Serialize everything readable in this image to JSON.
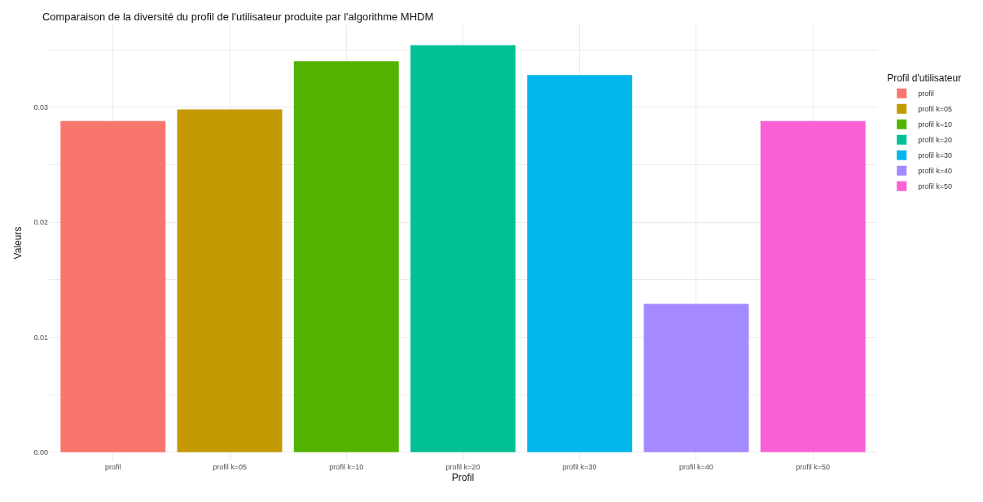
{
  "chart_data": {
    "type": "bar",
    "title": "Comparaison de la diversité du profil de l'utilisateur produite par l'algorithme MHDM",
    "xlabel": "Profil",
    "ylabel": "Valeurs",
    "legend_title": "Profil d'utilisateur",
    "categories": [
      "profil",
      "profil k=05",
      "profil k=10",
      "profil k=20",
      "profil k=30",
      "profil k=40",
      "profil k=50"
    ],
    "series": [
      {
        "name": "profil",
        "color": "#f8766d",
        "values": [
          0.0288,
          null,
          null,
          null,
          null,
          null,
          null
        ]
      },
      {
        "name": "profil k=05",
        "color": "#c49a00",
        "values": [
          null,
          0.0298,
          null,
          null,
          null,
          null,
          null
        ]
      },
      {
        "name": "profil k=10",
        "color": "#53b400",
        "values": [
          null,
          null,
          0.034,
          null,
          null,
          null,
          null
        ]
      },
      {
        "name": "profil k=20",
        "color": "#00c094",
        "values": [
          null,
          null,
          null,
          0.0354,
          null,
          null,
          null
        ]
      },
      {
        "name": "profil k=30",
        "color": "#00b6eb",
        "values": [
          null,
          null,
          null,
          null,
          0.0328,
          null,
          null
        ]
      },
      {
        "name": "profil k=40",
        "color": "#a58aff",
        "values": [
          null,
          null,
          null,
          null,
          null,
          0.0129,
          null
        ]
      },
      {
        "name": "profil k=50",
        "color": "#fb61d7",
        "values": [
          null,
          null,
          null,
          null,
          null,
          null,
          0.0288
        ]
      }
    ],
    "ylim": [
      -0.0008,
      0.0372
    ],
    "yticks": [
      {
        "value": 0,
        "label": "0.00"
      },
      {
        "value": 0.005,
        "label": null
      },
      {
        "value": 0.01,
        "label": "0.01"
      },
      {
        "value": 0.015,
        "label": null
      },
      {
        "value": 0.02,
        "label": "0.02"
      },
      {
        "value": 0.025,
        "label": null
      },
      {
        "value": 0.03,
        "label": "0.03"
      },
      {
        "value": 0.035,
        "label": null
      }
    ],
    "grid": true,
    "legend": "right"
  }
}
